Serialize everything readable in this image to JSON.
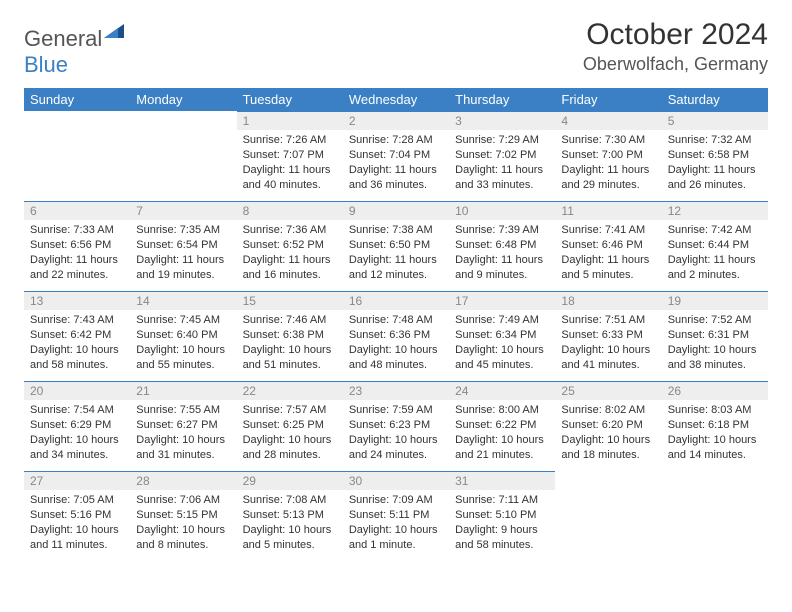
{
  "brand": {
    "part1": "General",
    "part2": "Blue"
  },
  "title": "October 2024",
  "location": "Oberwolfach, Germany",
  "colors": {
    "header_blue": "#3b7fc4",
    "divider_blue": "#3b7fc4",
    "light_gray_bg": "#eeeeee",
    "date_gray": "#888888",
    "text_dark": "#333333"
  },
  "weekdays": [
    "Sunday",
    "Monday",
    "Tuesday",
    "Wednesday",
    "Thursday",
    "Friday",
    "Saturday"
  ],
  "weeks": [
    [
      null,
      null,
      {
        "n": "1",
        "sunrise": "7:26 AM",
        "sunset": "7:07 PM",
        "daylight": "11 hours and 40 minutes."
      },
      {
        "n": "2",
        "sunrise": "7:28 AM",
        "sunset": "7:04 PM",
        "daylight": "11 hours and 36 minutes."
      },
      {
        "n": "3",
        "sunrise": "7:29 AM",
        "sunset": "7:02 PM",
        "daylight": "11 hours and 33 minutes."
      },
      {
        "n": "4",
        "sunrise": "7:30 AM",
        "sunset": "7:00 PM",
        "daylight": "11 hours and 29 minutes."
      },
      {
        "n": "5",
        "sunrise": "7:32 AM",
        "sunset": "6:58 PM",
        "daylight": "11 hours and 26 minutes."
      }
    ],
    [
      {
        "n": "6",
        "sunrise": "7:33 AM",
        "sunset": "6:56 PM",
        "daylight": "11 hours and 22 minutes."
      },
      {
        "n": "7",
        "sunrise": "7:35 AM",
        "sunset": "6:54 PM",
        "daylight": "11 hours and 19 minutes."
      },
      {
        "n": "8",
        "sunrise": "7:36 AM",
        "sunset": "6:52 PM",
        "daylight": "11 hours and 16 minutes."
      },
      {
        "n": "9",
        "sunrise": "7:38 AM",
        "sunset": "6:50 PM",
        "daylight": "11 hours and 12 minutes."
      },
      {
        "n": "10",
        "sunrise": "7:39 AM",
        "sunset": "6:48 PM",
        "daylight": "11 hours and 9 minutes."
      },
      {
        "n": "11",
        "sunrise": "7:41 AM",
        "sunset": "6:46 PM",
        "daylight": "11 hours and 5 minutes."
      },
      {
        "n": "12",
        "sunrise": "7:42 AM",
        "sunset": "6:44 PM",
        "daylight": "11 hours and 2 minutes."
      }
    ],
    [
      {
        "n": "13",
        "sunrise": "7:43 AM",
        "sunset": "6:42 PM",
        "daylight": "10 hours and 58 minutes."
      },
      {
        "n": "14",
        "sunrise": "7:45 AM",
        "sunset": "6:40 PM",
        "daylight": "10 hours and 55 minutes."
      },
      {
        "n": "15",
        "sunrise": "7:46 AM",
        "sunset": "6:38 PM",
        "daylight": "10 hours and 51 minutes."
      },
      {
        "n": "16",
        "sunrise": "7:48 AM",
        "sunset": "6:36 PM",
        "daylight": "10 hours and 48 minutes."
      },
      {
        "n": "17",
        "sunrise": "7:49 AM",
        "sunset": "6:34 PM",
        "daylight": "10 hours and 45 minutes."
      },
      {
        "n": "18",
        "sunrise": "7:51 AM",
        "sunset": "6:33 PM",
        "daylight": "10 hours and 41 minutes."
      },
      {
        "n": "19",
        "sunrise": "7:52 AM",
        "sunset": "6:31 PM",
        "daylight": "10 hours and 38 minutes."
      }
    ],
    [
      {
        "n": "20",
        "sunrise": "7:54 AM",
        "sunset": "6:29 PM",
        "daylight": "10 hours and 34 minutes."
      },
      {
        "n": "21",
        "sunrise": "7:55 AM",
        "sunset": "6:27 PM",
        "daylight": "10 hours and 31 minutes."
      },
      {
        "n": "22",
        "sunrise": "7:57 AM",
        "sunset": "6:25 PM",
        "daylight": "10 hours and 28 minutes."
      },
      {
        "n": "23",
        "sunrise": "7:59 AM",
        "sunset": "6:23 PM",
        "daylight": "10 hours and 24 minutes."
      },
      {
        "n": "24",
        "sunrise": "8:00 AM",
        "sunset": "6:22 PM",
        "daylight": "10 hours and 21 minutes."
      },
      {
        "n": "25",
        "sunrise": "8:02 AM",
        "sunset": "6:20 PM",
        "daylight": "10 hours and 18 minutes."
      },
      {
        "n": "26",
        "sunrise": "8:03 AM",
        "sunset": "6:18 PM",
        "daylight": "10 hours and 14 minutes."
      }
    ],
    [
      {
        "n": "27",
        "sunrise": "7:05 AM",
        "sunset": "5:16 PM",
        "daylight": "10 hours and 11 minutes."
      },
      {
        "n": "28",
        "sunrise": "7:06 AM",
        "sunset": "5:15 PM",
        "daylight": "10 hours and 8 minutes."
      },
      {
        "n": "29",
        "sunrise": "7:08 AM",
        "sunset": "5:13 PM",
        "daylight": "10 hours and 5 minutes."
      },
      {
        "n": "30",
        "sunrise": "7:09 AM",
        "sunset": "5:11 PM",
        "daylight": "10 hours and 1 minute."
      },
      {
        "n": "31",
        "sunrise": "7:11 AM",
        "sunset": "5:10 PM",
        "daylight": "9 hours and 58 minutes."
      },
      null,
      null
    ]
  ],
  "labels": {
    "sunrise": "Sunrise:",
    "sunset": "Sunset:",
    "daylight": "Daylight:"
  }
}
